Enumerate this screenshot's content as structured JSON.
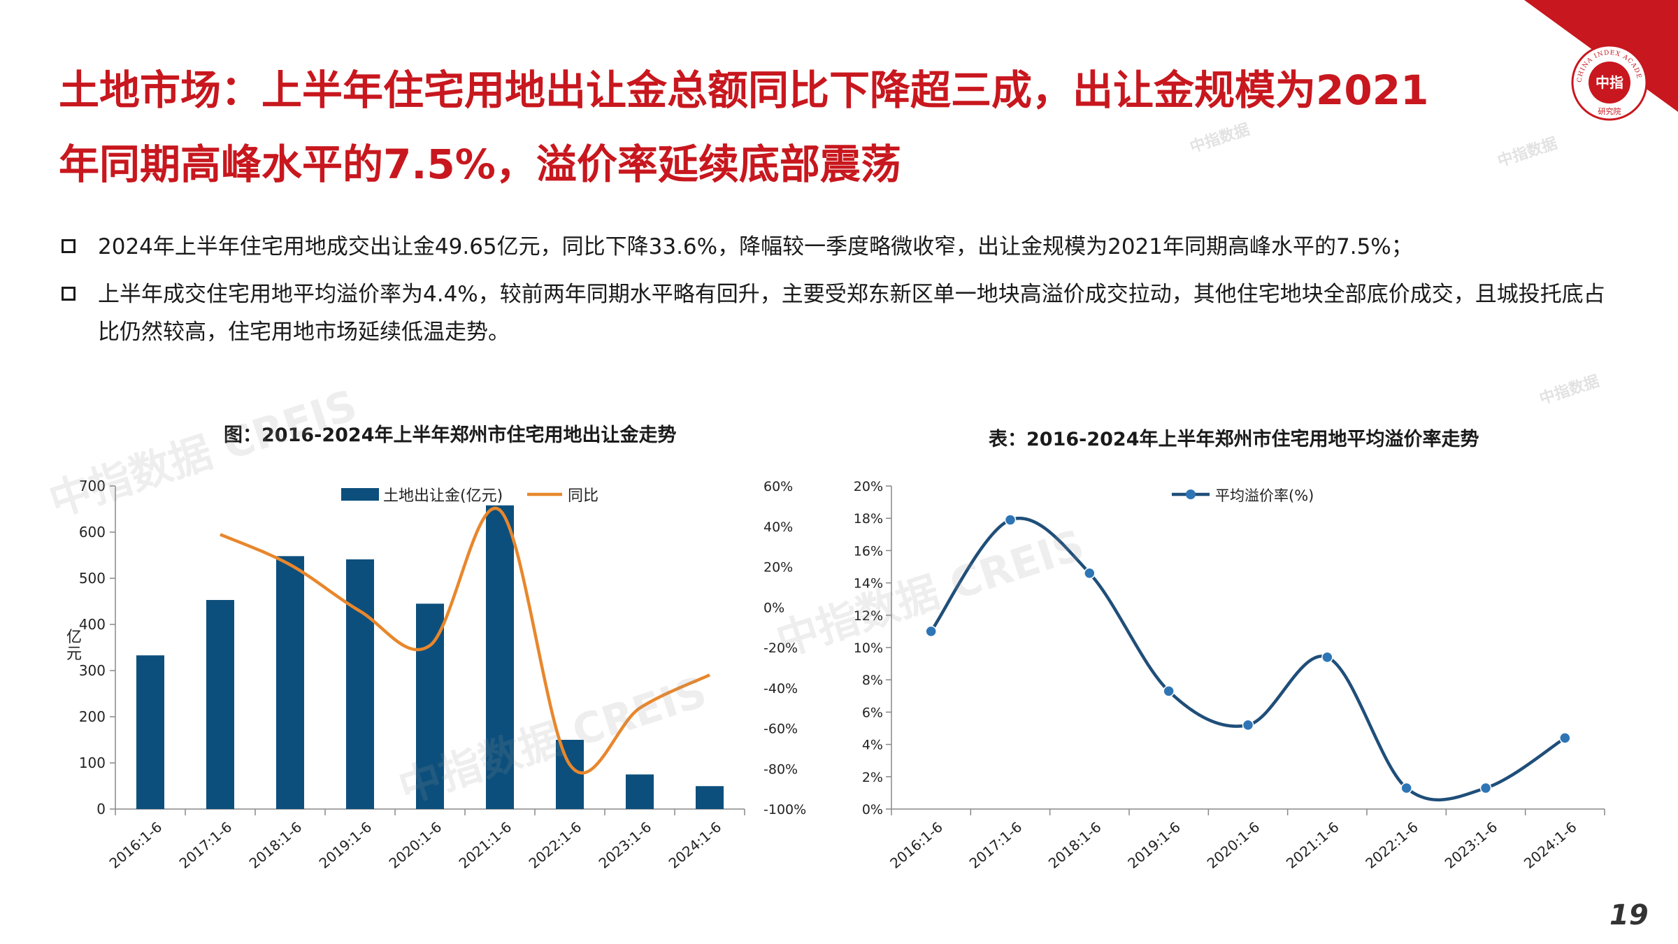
{
  "header": {
    "title_line1": "土地市场：上半年住宅用地出让金总额同比下降超三成，出让金规模为2021",
    "title_line2": "年同期高峰水平的7.5%，溢价率延续底部震荡",
    "logo": {
      "org_en": "CHINA INDEX ACADEMY",
      "org_cn_center": "中指",
      "org_cn_bottom": "研究院"
    }
  },
  "bullets": [
    "2024年上半年住宅用地成交出让金49.65亿元，同比下降33.6%，降幅较一季度略微收窄，出让金规模为2021年同期高峰水平的7.5%；",
    "上半年成交住宅用地平均溢价率为4.4%，较前两年同期水平略有回升，主要受郑东新区单一地块高溢价成交拉动，其他住宅地块全部底价成交，且城投托底占比仍然较高，住宅用地市场延续低温走势。"
  ],
  "watermark": {
    "big": "中指数据 CREIS",
    "small_cn": "中指数据",
    "small_en": "CREIS"
  },
  "page_number": "19",
  "chart_data": [
    {
      "type": "bar",
      "title": "图：2016-2024年上半年郑州市住宅用地出让金走势",
      "categories": [
        "2016:1-6",
        "2017:1-6",
        "2018:1-6",
        "2019:1-6",
        "2020:1-6",
        "2021:1-6",
        "2022:1-6",
        "2023:1-6",
        "2024:1-6"
      ],
      "ylabel": "亿元",
      "ylim": [
        0,
        700
      ],
      "yticks": [
        "0",
        "100",
        "200",
        "300",
        "400",
        "500",
        "600",
        "700"
      ],
      "y2lim": [
        -100,
        60
      ],
      "y2ticks": [
        "-100%",
        "-80%",
        "-60%",
        "-40%",
        "-20%",
        "0%",
        "20%",
        "40%",
        "60%"
      ],
      "legend_position": "top",
      "series": [
        {
          "name": "土地出让金(亿元)",
          "type": "bar",
          "color": "#0d4f7c",
          "values": [
            333,
            453,
            548,
            541,
            445,
            658,
            150,
            75,
            49.65
          ]
        },
        {
          "name": "同比",
          "type": "line",
          "axis": "right",
          "color": "#e8872c",
          "values": [
            null,
            36,
            21,
            -2,
            -19,
            48,
            -78,
            -50,
            -33.6
          ]
        }
      ]
    },
    {
      "type": "line",
      "title": "表：2016-2024年上半年郑州市住宅用地平均溢价率走势",
      "categories": [
        "2016:1-6",
        "2017:1-6",
        "2018:1-6",
        "2019:1-6",
        "2020:1-6",
        "2021:1-6",
        "2022:1-6",
        "2023:1-6",
        "2024:1-6"
      ],
      "ylim": [
        0,
        20
      ],
      "yticks": [
        "0%",
        "2%",
        "4%",
        "6%",
        "8%",
        "10%",
        "12%",
        "14%",
        "16%",
        "18%",
        "20%"
      ],
      "legend_position": "top",
      "series": [
        {
          "name": "平均溢价率(%)",
          "color": "#1f4e79",
          "values": [
            11.0,
            17.9,
            14.6,
            7.3,
            5.2,
            9.4,
            1.3,
            1.3,
            4.4
          ]
        }
      ]
    }
  ]
}
